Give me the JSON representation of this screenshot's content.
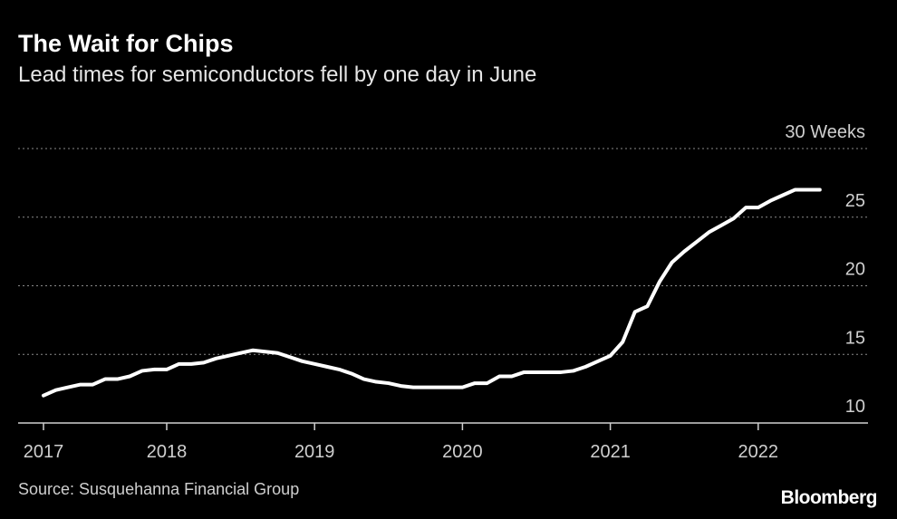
{
  "chart_data": {
    "type": "line",
    "title": "The Wait for Chips",
    "subtitle": "Lead times for semiconductors fell by one day in June",
    "source": "Source: Susquehanna Financial Group",
    "logo": "Bloomberg",
    "categories": [
      "2017",
      null,
      null,
      null,
      null,
      null,
      null,
      null,
      null,
      null,
      "2018",
      null,
      null,
      null,
      null,
      null,
      null,
      null,
      null,
      null,
      null,
      null,
      "2019",
      null,
      null,
      null,
      null,
      null,
      null,
      null,
      null,
      null,
      null,
      null,
      "2020",
      null,
      null,
      null,
      null,
      null,
      null,
      null,
      null,
      null,
      null,
      null,
      "2021",
      null,
      null,
      null,
      null,
      null,
      null,
      null,
      null,
      null,
      null,
      null,
      "2022",
      null,
      null,
      null,
      null,
      null
    ],
    "values": [
      12.0,
      12.4,
      12.6,
      12.8,
      12.8,
      13.2,
      13.2,
      13.4,
      13.8,
      13.9,
      13.9,
      14.3,
      14.3,
      14.4,
      14.7,
      14.9,
      15.1,
      15.3,
      15.2,
      15.1,
      14.8,
      14.5,
      14.3,
      14.1,
      13.9,
      13.6,
      13.2,
      13.0,
      12.9,
      12.7,
      12.6,
      12.6,
      12.6,
      12.6,
      12.6,
      12.9,
      12.9,
      13.4,
      13.4,
      13.7,
      13.7,
      13.7,
      13.7,
      13.8,
      14.1,
      14.5,
      14.9,
      15.9,
      18.1,
      18.5,
      20.3,
      21.7,
      22.5,
      23.2,
      23.9,
      24.4,
      24.9,
      25.7,
      25.7,
      26.2,
      26.6,
      27.0,
      27.0,
      27.0
    ],
    "color": "#ffffff",
    "ylim": [
      10,
      30
    ],
    "yticks": [
      10,
      15,
      20,
      25,
      {
        "value": 30,
        "label": "30 Weeks"
      }
    ],
    "grid": true
  }
}
